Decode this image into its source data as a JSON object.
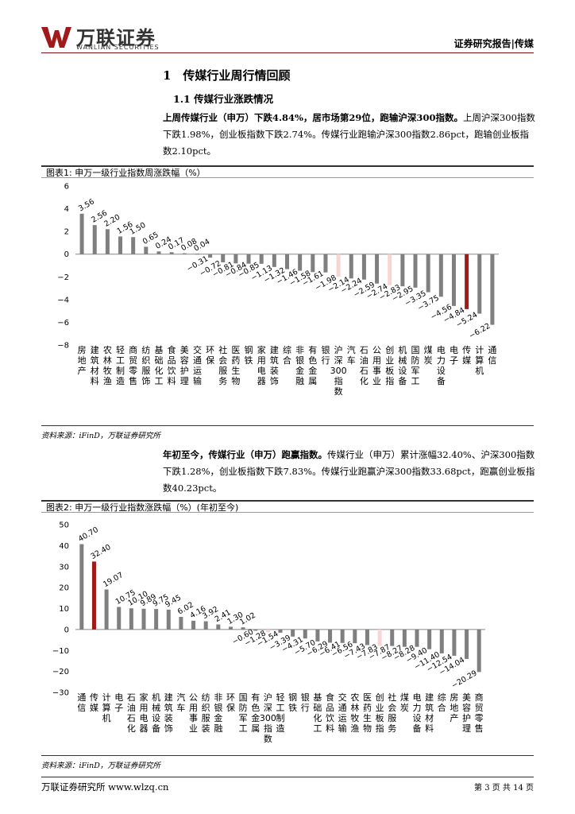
{
  "header": {
    "brand_cn": "万联证券",
    "brand_en": "WANLIAN SECURITIES",
    "report_type": "证券研究报告|传媒"
  },
  "section": {
    "title": "1　传媒行业周行情回顾",
    "subtitle": "1.1 传媒行业涨跌情况"
  },
  "paragraph1": {
    "bold": "上周传媒行业（申万）下跌4.84%，居市场第29位，跑输沪深300指数。",
    "normal": "上周沪深300指数下跌1.98%，创业板指数下跌2.74%。传媒行业跑输沪深300指数2.86pct，跑输创业板指数2.10pct。"
  },
  "paragraph2": {
    "bold": "年初至今，传媒行业（申万）跑赢指数。",
    "normal": "传媒行业（申万）累计涨幅32.40%、沪深300指数下跌1.28%，创业板指数下跌7.83%。传媒行业跑赢沪深300指数33.68pct，跑赢创业板指数40.23pct。"
  },
  "figure1": {
    "caption": "图表1:  申万一级行业指数周涨跌幅（%）",
    "source": "资料来源：iFinD，万联证券研究所"
  },
  "figure2": {
    "caption": "图表2:  申万一级行业指数涨跌幅（%）(年初至今)",
    "source": "资料来源：iFinD，万联证券研究所"
  },
  "chart_data": [
    {
      "type": "bar",
      "title": "申万一级行业指数周涨跌幅（%）",
      "ylim": [
        -8,
        6
      ],
      "yticks": [
        6,
        4,
        2,
        0,
        -2,
        -4,
        -6,
        -8
      ],
      "categories": [
        "房地产",
        "建筑材料",
        "农林牧渔",
        "轻工制造",
        "商贸零售",
        "纺织服饰",
        "基础化工",
        "食品饮料",
        "美容护理",
        "交通运输",
        "环保",
        "社会服务",
        "医药生物",
        "钢铁",
        "家用电器",
        "建筑装饰",
        "综合",
        "非银金融",
        "有色金属",
        "银行",
        "沪深300指数",
        "汽车",
        "石油石化",
        "公用事业",
        "创业板指",
        "机械设备",
        "国防军工",
        "煤炭",
        "电力设备",
        "电子",
        "传媒",
        "计算机",
        "通信"
      ],
      "values": [
        3.56,
        2.56,
        2.2,
        1.56,
        1.5,
        0.65,
        0.24,
        0.17,
        0.08,
        0.04,
        -0.31,
        -0.72,
        -0.81,
        -0.84,
        -0.85,
        -1.13,
        -1.32,
        -1.46,
        -1.58,
        -1.61,
        -1.98,
        -2.14,
        -2.24,
        -2.59,
        -2.74,
        -2.83,
        -2.95,
        -3.35,
        -3.75,
        -4.56,
        -4.84,
        -5.24,
        -6.22
      ],
      "labels": [
        "3.56",
        "2.56",
        "2.20",
        "1.56",
        "1.50",
        "0.65",
        "0.24",
        "0.17",
        "0.08",
        "0.04",
        "−0.31",
        "−0.72",
        "−0.81",
        "−0.84",
        "−0.85",
        "−1.13",
        "−1.32",
        "−1.46",
        "−1.58",
        "−1.61",
        "−1.98",
        "−2.14",
        "−2.24",
        "−2.59",
        "−2.74",
        "−2.83",
        "−2.95",
        "−3.35",
        "−3.75",
        "−4.56",
        "−4.84",
        "−5.24",
        "−6.22"
      ],
      "highlight": {
        "传媒": "#a0191b",
        "沪深300指数": "#f6d5d5",
        "创业板指": "#f6d5d5"
      },
      "bar_color": "#7f7f7f"
    },
    {
      "type": "bar",
      "title": "申万一级行业指数涨跌幅（%）(年初至今)",
      "ylim": [
        -30,
        50
      ],
      "yticks": [
        50,
        40,
        30,
        20,
        10,
        0,
        -10,
        -20,
        -30
      ],
      "categories": [
        "通信",
        "传媒",
        "计算机",
        "电子",
        "石油石化",
        "家用电器",
        "机械设备",
        "建筑装饰",
        "汽车",
        "公用事业",
        "纺织服装",
        "非银金融",
        "环保",
        "国防军工",
        "有色金属",
        "沪深300指数",
        "轻工制造",
        "钢铁",
        "银行",
        "基础化工",
        "食品饮料",
        "交通运输",
        "农林牧渔",
        "医药生物",
        "创业板指",
        "社会服务",
        "煤炭",
        "电力设备",
        "建筑材料",
        "综合",
        "房地产",
        "美容护理",
        "商贸零售"
      ],
      "values": [
        40.7,
        32.4,
        19.07,
        10.75,
        10.1,
        9.89,
        9.75,
        9.45,
        6.02,
        4.16,
        3.92,
        2.41,
        1.3,
        1.02,
        -0.6,
        -1.28,
        -1.54,
        -3.39,
        -4.31,
        -5.7,
        -6.29,
        -6.41,
        -6.56,
        -7.43,
        -7.83,
        -7.87,
        -8.27,
        -8.28,
        -9.4,
        -11.4,
        -12.54,
        -14.04,
        -20.29
      ],
      "labels": [
        "40.70",
        "32.40",
        "19.07",
        "10.75",
        "10.10",
        "9.89",
        "9.75",
        "9.45",
        "6.02",
        "4.16",
        "3.92",
        "2.41",
        "1.30",
        "1.02",
        "−0.60",
        "−1.28",
        "−1.54",
        "−3.39",
        "−4.31",
        "−5.70",
        "−6.29",
        "−6.41",
        "−6.56",
        "−7.43",
        "−7.83",
        "−7.87",
        "−8.27",
        "−8.28",
        "−9.40",
        "−11.40",
        "−12.54",
        "−14.04",
        "−20.29"
      ],
      "highlight": {
        "传媒": "#a0191b",
        "沪深300指数": "#f6d5d5",
        "创业板指": "#f6d5d5"
      },
      "bar_color": "#7f7f7f"
    }
  ],
  "footer": {
    "left": "万联证券研究所 www.wlzq.cn",
    "right": "第 3 页 共 14 页"
  }
}
